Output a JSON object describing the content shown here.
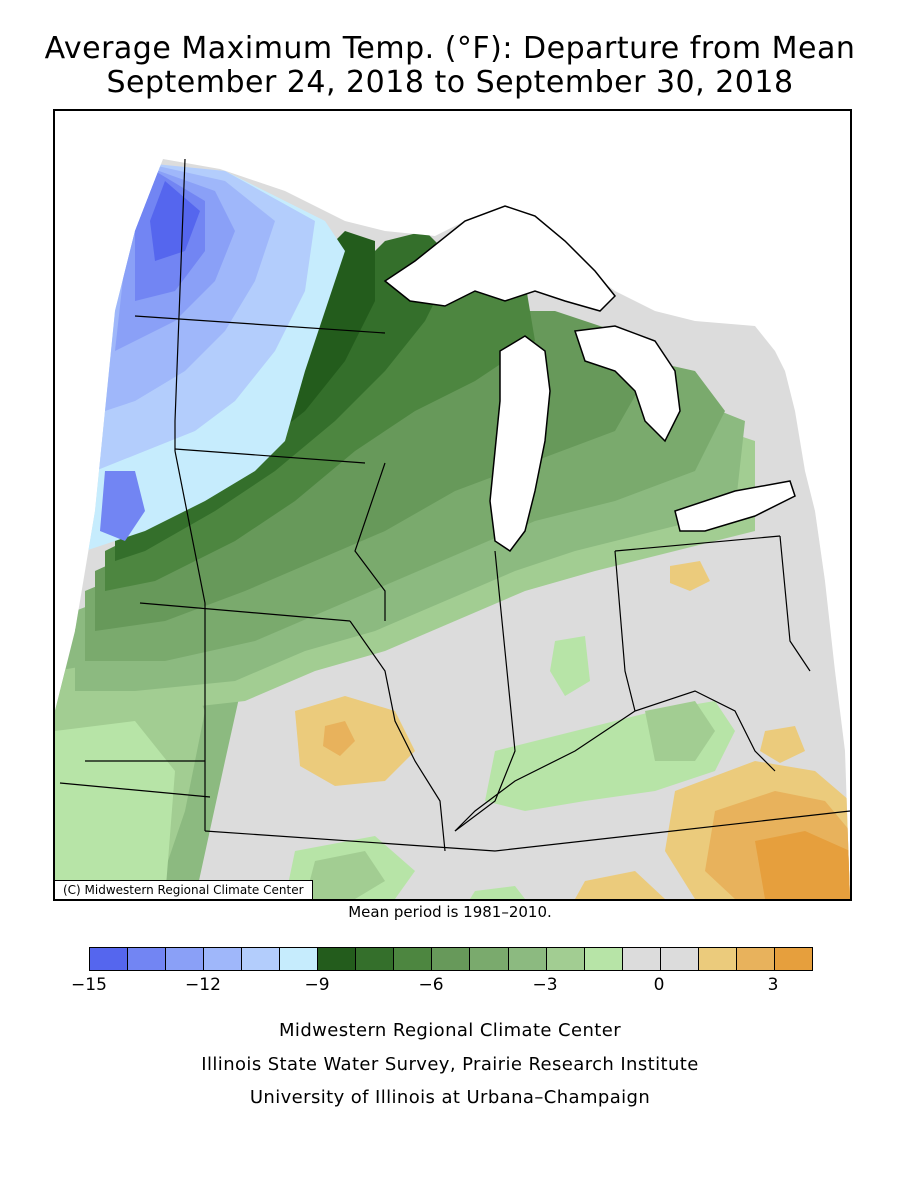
{
  "title": {
    "line1": "Average Maximum Temp. (°F): Departure from Mean",
    "line2": "September 24, 2018 to September 30, 2018"
  },
  "map": {
    "credit": "(C) Midwestern Regional Climate Center",
    "region": "Midwest United States",
    "palette": {
      "lake": "#ffffff",
      "border": "#000000"
    }
  },
  "mean_note": "Mean period is 1981–2010.",
  "legend": {
    "bins": [
      {
        "color": "#5566ee"
      },
      {
        "color": "#7285f3"
      },
      {
        "color": "#8aa0f7"
      },
      {
        "color": "#9fb7fa"
      },
      {
        "color": "#b3cdfc"
      },
      {
        "color": "#c6ecfd"
      },
      {
        "color": "#235c1c"
      },
      {
        "color": "#346f2b"
      },
      {
        "color": "#4d8640"
      },
      {
        "color": "#67995a"
      },
      {
        "color": "#7aaa6d"
      },
      {
        "color": "#8cba80"
      },
      {
        "color": "#a2cd92"
      },
      {
        "color": "#b7e4a7"
      },
      {
        "color": "#dcdcdc"
      },
      {
        "color": "#dcdcdc"
      },
      {
        "color": "#ebcb7c"
      },
      {
        "color": "#e8b25c"
      },
      {
        "color": "#e69f3d"
      }
    ],
    "ticks": [
      "−15",
      "−12",
      "−9",
      "−6",
      "−3",
      "0",
      "3"
    ]
  },
  "footer": {
    "line1": "Midwestern Regional Climate Center",
    "line2": "Illinois State Water Survey, Prairie Research Institute",
    "line3": "University of Illinois at Urbana–Champaign"
  }
}
